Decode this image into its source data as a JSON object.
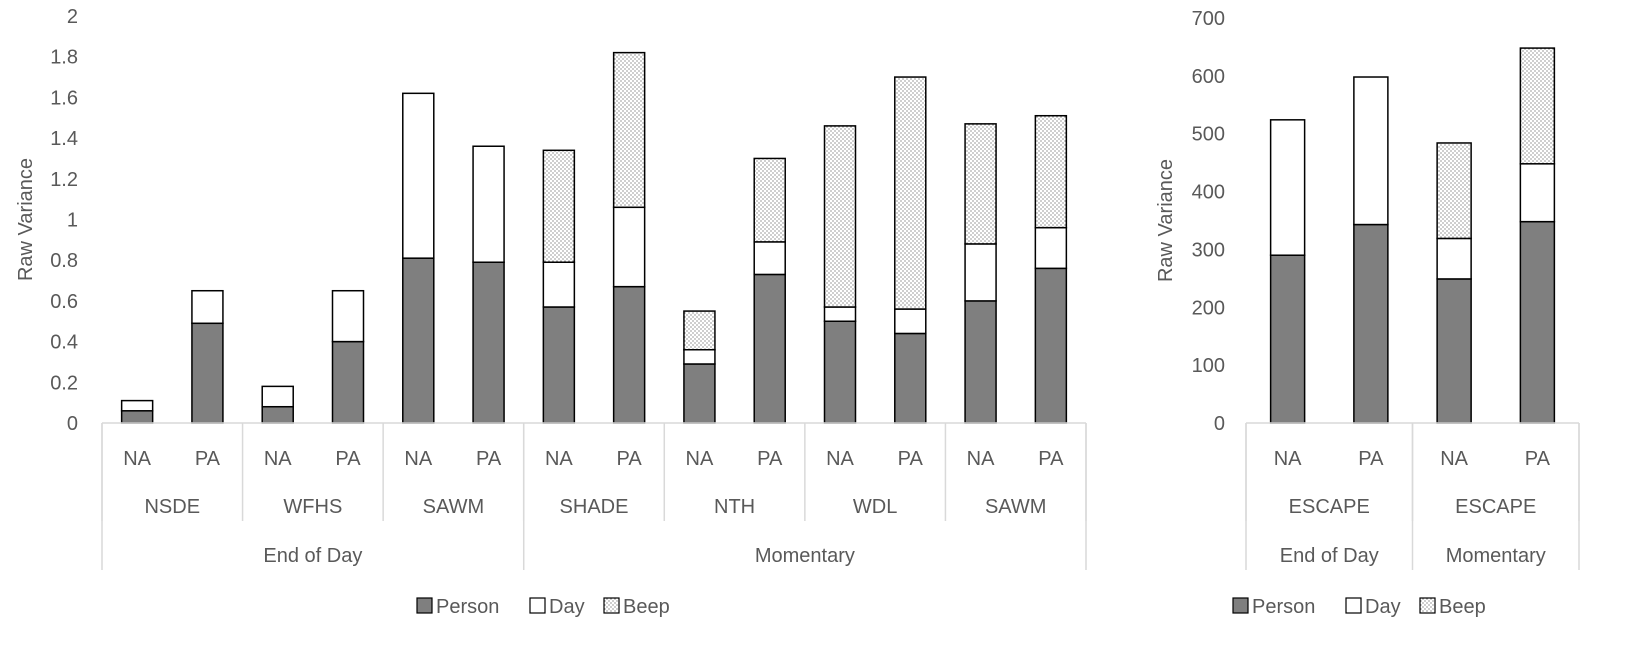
{
  "legend_labels": {
    "person": "Person",
    "day": "Day",
    "beep": "Beep"
  },
  "chart_data": [
    {
      "type": "bar",
      "stacked": true,
      "ylabel": "Raw Variance",
      "ylim": [
        0,
        2
      ],
      "yticks": [
        "0",
        "0.2",
        "0.4",
        "0.6",
        "0.8",
        "1",
        "1.2",
        "1.4",
        "1.6",
        "1.8",
        "2"
      ],
      "grid": false,
      "legend": "bottom",
      "categories": [
        "NA",
        "PA",
        "NA",
        "PA",
        "NA",
        "PA",
        "NA",
        "PA",
        "NA",
        "PA",
        "NA",
        "PA",
        "NA",
        "PA"
      ],
      "groups": [
        {
          "label": "NSDE",
          "count": 2
        },
        {
          "label": "WFHS",
          "count": 2
        },
        {
          "label": "SAWM",
          "count": 2
        },
        {
          "label": "SHADE",
          "count": 2
        },
        {
          "label": "NTH",
          "count": 2
        },
        {
          "label": "WDL",
          "count": 2
        },
        {
          "label": "SAWM",
          "count": 2
        }
      ],
      "supergroups": [
        {
          "label": "End of Day",
          "count": 6
        },
        {
          "label": "Momentary",
          "count": 8
        }
      ],
      "series": [
        {
          "name": "Person",
          "values": [
            0.06,
            0.49,
            0.08,
            0.4,
            0.81,
            0.79,
            0.57,
            0.67,
            0.29,
            0.73,
            0.5,
            0.44,
            0.6,
            0.76
          ]
        },
        {
          "name": "Day",
          "values": [
            0.05,
            0.16,
            0.1,
            0.25,
            0.81,
            0.57,
            0.22,
            0.39,
            0.07,
            0.16,
            0.07,
            0.12,
            0.28,
            0.2
          ]
        },
        {
          "name": "Beep",
          "values": [
            0,
            0,
            0,
            0,
            0,
            0,
            0.55,
            0.76,
            0.19,
            0.41,
            0.89,
            1.14,
            0.59,
            0.55
          ]
        }
      ]
    },
    {
      "type": "bar",
      "stacked": true,
      "ylabel": "Raw Variance",
      "ylim": [
        0,
        700
      ],
      "yticks": [
        "0",
        "100",
        "200",
        "300",
        "400",
        "500",
        "600",
        "700"
      ],
      "grid": false,
      "legend": "bottom",
      "categories": [
        "NA",
        "PA",
        "NA",
        "PA"
      ],
      "groups": [
        {
          "label": "ESCAPE",
          "count": 2
        },
        {
          "label": "ESCAPE",
          "count": 2
        }
      ],
      "supergroups": [
        {
          "label": "End of Day",
          "count": 2
        },
        {
          "label": "Momentary",
          "count": 2
        }
      ],
      "series": [
        {
          "name": "Person",
          "values": [
            290,
            343,
            249,
            348
          ]
        },
        {
          "name": "Day",
          "values": [
            234,
            255,
            70,
            100
          ]
        },
        {
          "name": "Beep",
          "values": [
            0,
            0,
            165,
            200
          ]
        }
      ]
    }
  ]
}
